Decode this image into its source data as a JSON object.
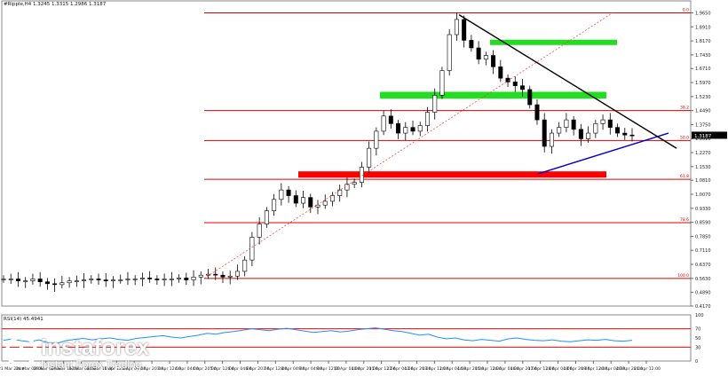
{
  "chart_data": {
    "type": "candlestick",
    "title": "#Ripple,H4  1.3245 1.3315 1.2986 1.3187",
    "price_panel": {
      "ylim": [
        0.417,
        2.0
      ],
      "ytick_labels": [
        "1.9650",
        "1.8910",
        "1.8170",
        "1.7430",
        "1.6710",
        "1.5970",
        "1.5230",
        "1.4490",
        "1.3750",
        "1.3010",
        "1.2270",
        "1.1530",
        "1.0810",
        "1.0070",
        "0.9330",
        "0.8590",
        "0.7850",
        "0.7110",
        "0.6370",
        "0.5630",
        "0.4890",
        "0.4170"
      ],
      "ytick_values": [
        1.965,
        1.891,
        1.817,
        1.743,
        1.671,
        1.597,
        1.523,
        1.449,
        1.375,
        1.301,
        1.227,
        1.153,
        1.081,
        1.007,
        0.933,
        0.859,
        0.785,
        0.711,
        0.637,
        0.563,
        0.489,
        0.417
      ],
      "current_price_label": "1.3187",
      "current_price": 1.3187,
      "fib_levels": [
        {
          "label": "0.0",
          "value": 1.965
        },
        {
          "label": "38.2",
          "value": 1.449
        },
        {
          "label": "50.0",
          "value": 1.291
        },
        {
          "label": "61.8",
          "value": 1.086
        },
        {
          "label": "78.6",
          "value": 0.857
        },
        {
          "label": "100.0",
          "value": 0.563
        }
      ],
      "zones": [
        {
          "color": "#22dd22",
          "y1": 1.823,
          "y2": 1.795,
          "x1": "14 Apr 08:00",
          "x2": "21 Apr 08:00"
        },
        {
          "color": "#22dd22",
          "y1": 1.548,
          "y2": 1.512,
          "x1": "9 Apr 12:00",
          "x2": "21 Apr 04:00"
        },
        {
          "color": "#ff0000",
          "y1": 1.128,
          "y2": 1.095,
          "x1": "5 Apr 12:00",
          "x2": "21 Apr 04:00"
        }
      ],
      "trendlines": [
        {
          "color": "#000000",
          "from": [
            "13 Apr 12:00",
            1.955
          ],
          "to": [
            "22 Apr 12:00",
            1.25
          ]
        },
        {
          "color": "#0000cc",
          "from": [
            "17 Apr 20:00",
            1.115
          ],
          "to": [
            "22 Apr 08:00",
            1.33
          ]
        },
        {
          "color": "#ff3333",
          "dashed": true,
          "from": [
            "1 Apr 04:00",
            0.563
          ],
          "to": [
            "15 Apr 04:00",
            1.965
          ]
        }
      ],
      "candles_close_path": [
        0.56,
        0.56,
        0.55,
        0.55,
        0.56,
        0.545,
        0.535,
        0.53,
        0.54,
        0.55,
        0.55,
        0.555,
        0.56,
        0.555,
        0.55,
        0.555,
        0.555,
        0.56,
        0.56,
        0.565,
        0.56,
        0.555,
        0.56,
        0.56,
        0.565,
        0.555,
        0.57,
        0.58,
        0.585,
        0.58,
        0.57,
        0.575,
        0.6,
        0.66,
        0.78,
        0.85,
        0.92,
        0.98,
        1.03,
        1.0,
        0.96,
        0.99,
        0.94,
        0.95,
        0.97,
        1.0,
        1.03,
        1.06,
        1.07,
        1.15,
        1.25,
        1.34,
        1.42,
        1.38,
        1.33,
        1.36,
        1.34,
        1.37,
        1.44,
        1.53,
        1.66,
        1.85,
        1.93,
        1.82,
        1.78,
        1.72,
        1.74,
        1.68,
        1.62,
        1.6,
        1.58,
        1.56,
        1.48,
        1.4,
        1.26,
        1.33,
        1.36,
        1.4,
        1.35,
        1.3,
        1.33,
        1.38,
        1.4,
        1.36,
        1.33,
        1.32,
        1.318
      ]
    },
    "rsi_panel": {
      "label": "RSI(14) 45.4941",
      "ylim": [
        0,
        100
      ],
      "ytick_labels": [
        "100",
        "70",
        "50",
        "30",
        "0"
      ],
      "ytick_values": [
        100,
        70,
        50,
        30,
        0
      ],
      "levels": [
        70,
        30
      ],
      "level_color": "#ff0000",
      "line_color": "#1e90ff",
      "values": [
        45,
        48,
        44,
        42,
        46,
        40,
        38,
        44,
        47,
        49,
        46,
        48,
        50,
        47,
        45,
        49,
        51,
        53,
        55,
        52,
        50,
        53,
        56,
        60,
        58,
        62,
        64,
        67,
        70,
        68,
        66,
        69,
        71,
        68,
        65,
        62,
        64,
        66,
        63,
        65,
        68,
        70,
        72,
        69,
        66,
        64,
        60,
        56,
        58,
        52,
        48,
        50,
        46,
        44,
        47,
        45,
        43,
        48,
        50,
        47,
        45,
        44,
        46,
        43,
        42,
        44,
        46,
        45,
        47,
        44,
        43,
        45
      ]
    },
    "xtick_labels": [
      "21 Mar 2018",
      "28 Mar 08:00",
      "29 Mar 00:00",
      "29 Mar 16:00",
      "30 Mar 08:00",
      "31 Mar 16:00",
      "1 Apr 12:00",
      "2 Apr 04:00",
      "2 Apr 20:00",
      "3 Apr 12:00",
      "4 Apr 04:00",
      "4 Apr 20:00",
      "5 Apr 12:00",
      "6 Apr 04:00",
      "6 Apr 20:00",
      "7 Apr 12:00",
      "8 Apr 04:00",
      "9 Apr 04:00",
      "9 Apr 12:00",
      "10 Apr 04:00",
      "10 Apr 20:00",
      "11 Apr 12:00",
      "12 Apr 04:00",
      "12 Apr 20:00",
      "13 Apr 12:00",
      "14 Apr 04:00",
      "14 Apr 20:00",
      "15 Apr 12:00",
      "16 Apr 04:00",
      "16 Apr 20:00",
      "17 Apr 12:00",
      "18 Apr 04:00",
      "18 Apr 20:00",
      "19 Apr 12:00",
      "20 Apr 04:00",
      "20 Apr 20:00",
      "21 Apr 12:00"
    ],
    "colors": {
      "fib_line": "#e00000",
      "grid": "#d8d8d8",
      "candle": "#000000",
      "price_badge_bg": "#000000",
      "price_badge_fg": "#ffffff"
    }
  },
  "watermark": {
    "brand": "instaforex",
    "tagline": "Instant Forex Trading"
  }
}
